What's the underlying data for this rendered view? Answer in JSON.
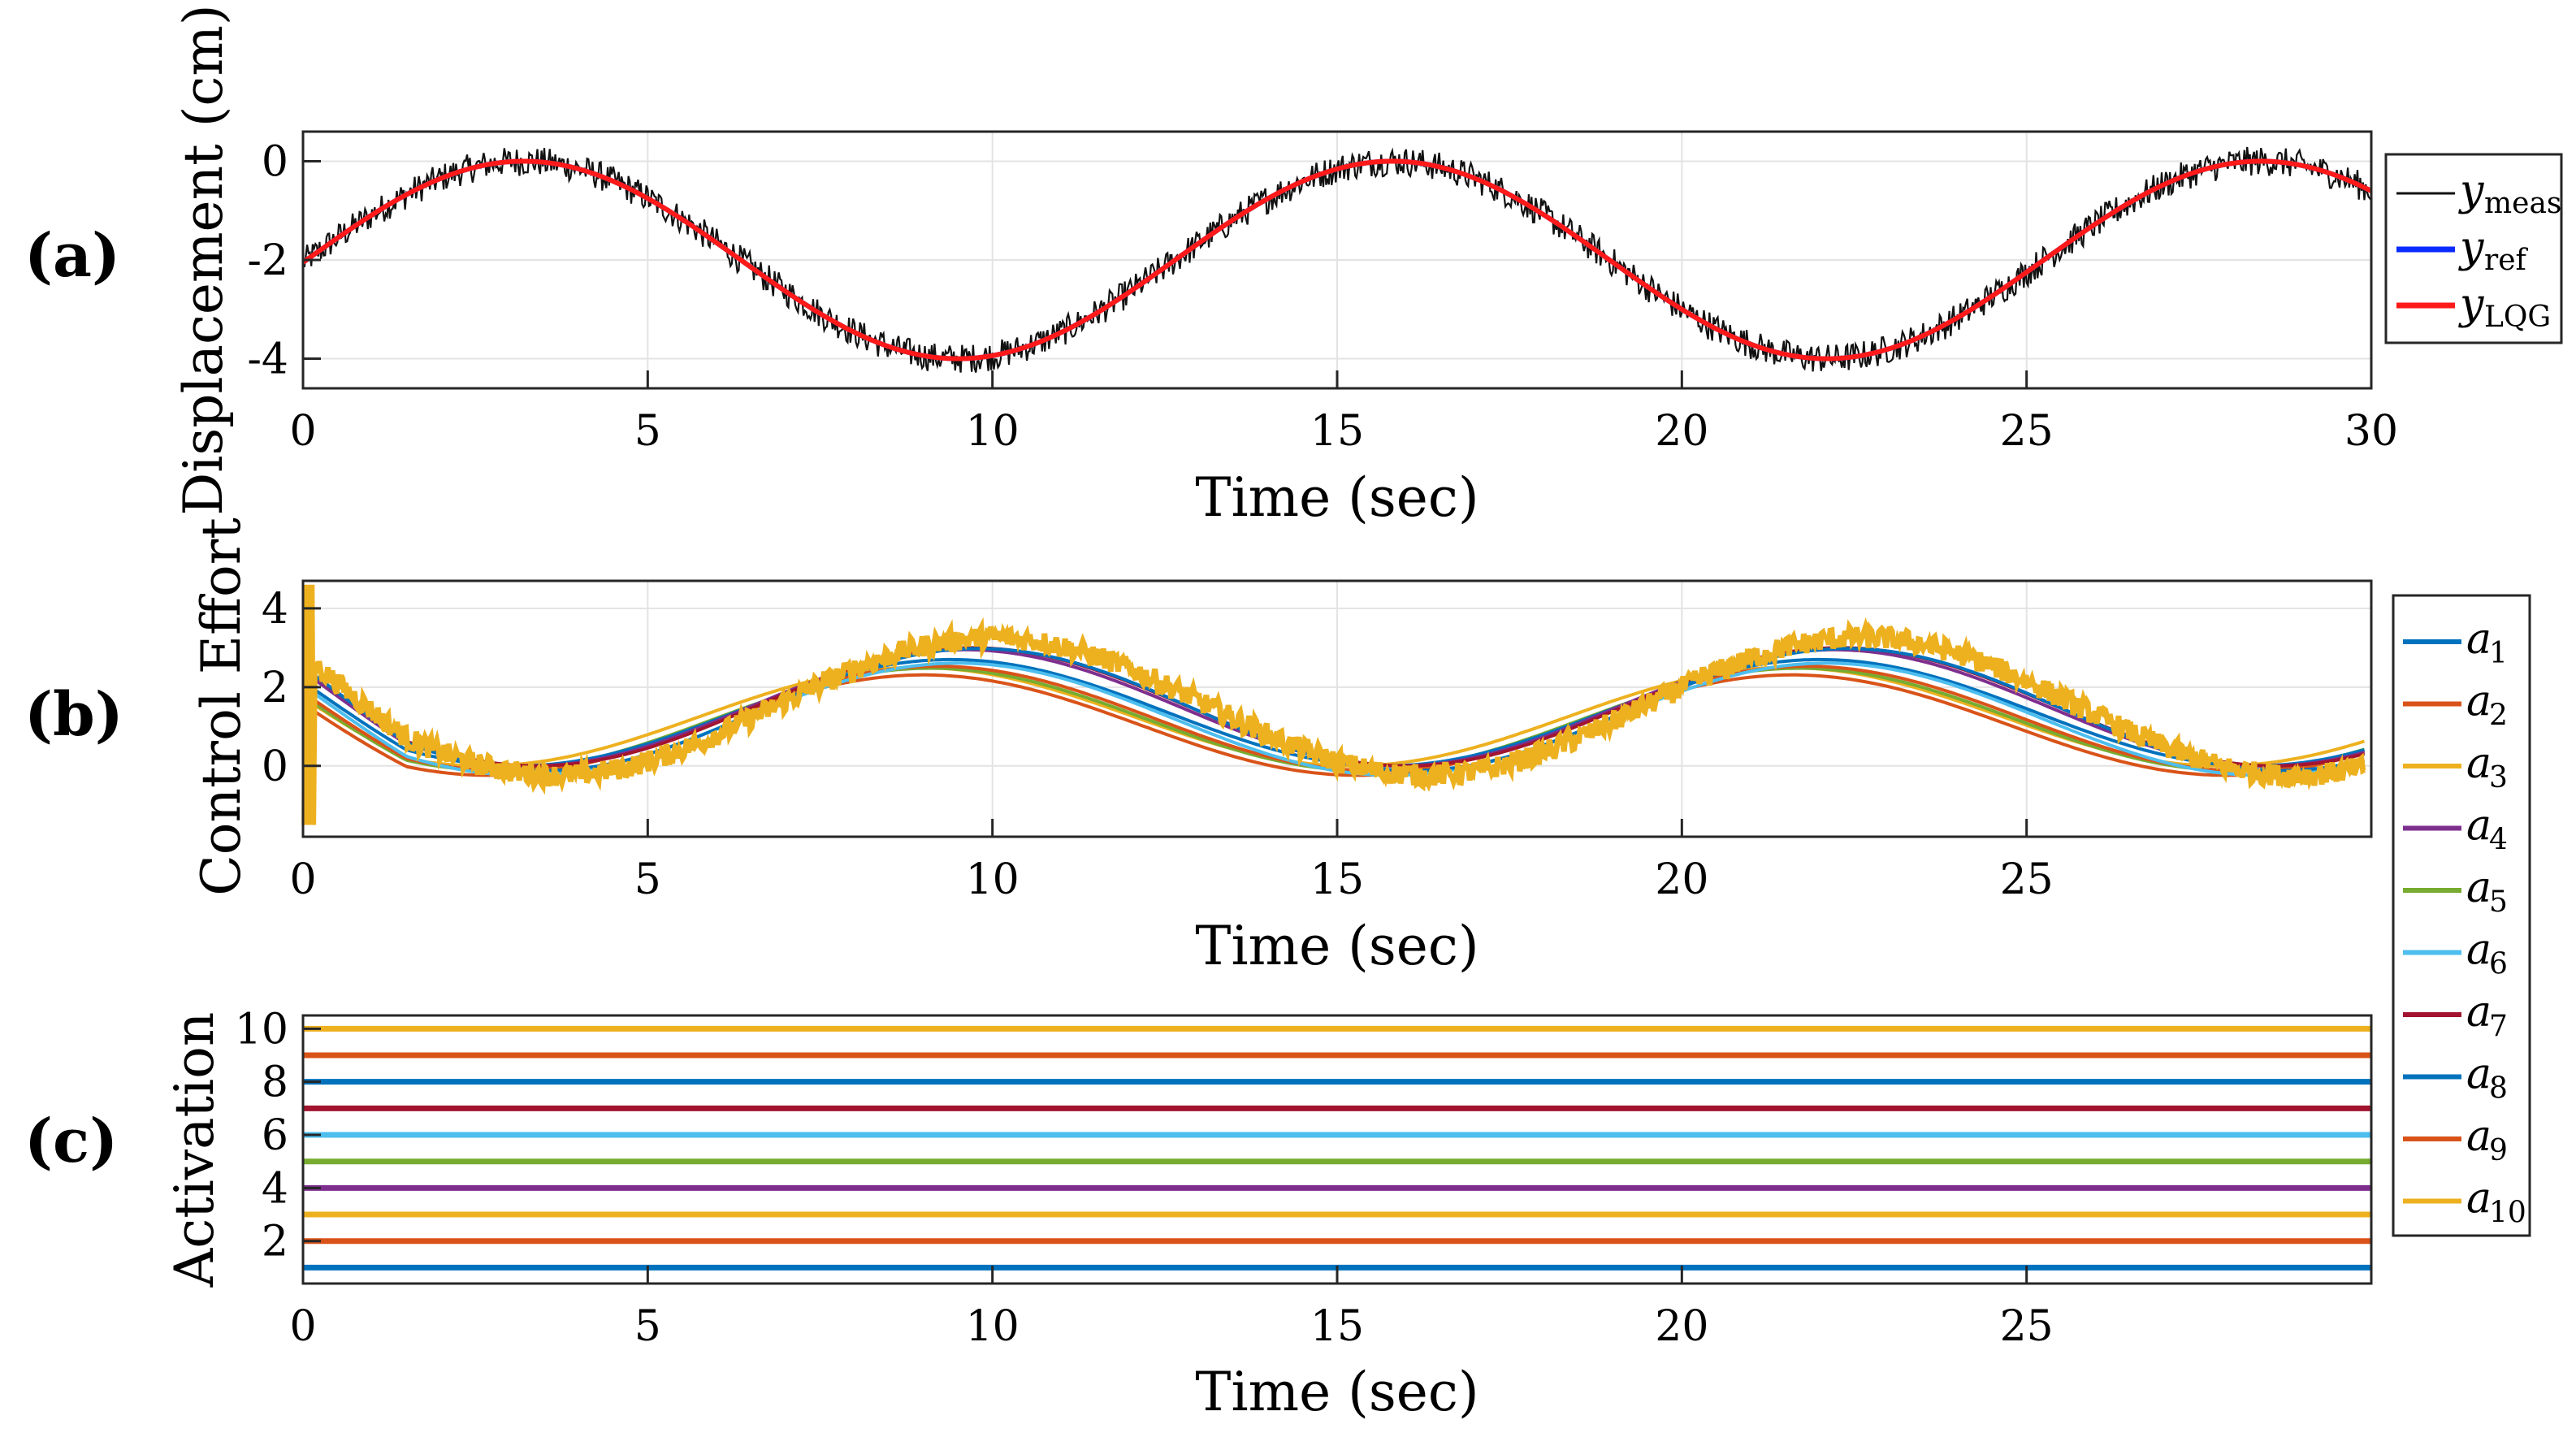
{
  "colors": {
    "meas": "#111111",
    "ref": "#0a2bff",
    "lqg": "#ff1a1a",
    "series": [
      "#0072BD",
      "#D95319",
      "#EDB120",
      "#7E2F8E",
      "#77AC30",
      "#4DBEEE",
      "#A2142F",
      "#0072BD",
      "#D95319",
      "#EDB120"
    ]
  },
  "panel_labels": [
    "(a)",
    "(b)",
    "(c)"
  ],
  "chart_data": [
    {
      "id": "a",
      "type": "line",
      "xlabel": "Time (sec)",
      "ylabel": "Displacement (cm)",
      "xlim": [
        0,
        30
      ],
      "ylim": [
        -4.6,
        0.6
      ],
      "xticks": [
        0,
        5,
        10,
        15,
        20,
        25,
        30
      ],
      "yticks": [
        -4,
        -2,
        0
      ],
      "ytick_labels": [
        "-4",
        "-2",
        "0"
      ],
      "grid": true,
      "legend_position": "outside-right",
      "reference": {
        "form": "A*cos(2*pi*(t - t0)/period) + offset",
        "amplitude": 2,
        "offset": -2,
        "period": 12.6,
        "t0": 3.2
      },
      "noise_amplitude_cm": 0.3,
      "series": [
        {
          "name": "y_meas",
          "legend": "y",
          "sub": "meas",
          "note": "noisy measurement"
        },
        {
          "name": "y_ref",
          "legend": "y",
          "sub": "ref"
        },
        {
          "name": "y_LQG",
          "legend": "y",
          "sub": "LQG"
        }
      ]
    },
    {
      "id": "b",
      "type": "line",
      "xlabel": "Time (sec)",
      "ylabel": "Control Effort",
      "xlim": [
        0,
        30
      ],
      "ylim": [
        -1.8,
        4.7
      ],
      "xticks": [
        0,
        5,
        10,
        15,
        20,
        25
      ],
      "yticks": [
        0,
        2,
        4
      ],
      "ytick_labels": [
        "0",
        "2",
        "4"
      ],
      "grid": true,
      "legend_position": "outside-right",
      "period": 12.6,
      "series": [
        {
          "name": "a",
          "sub": "1",
          "peak_t": 9.4,
          "amp": 2.7
        },
        {
          "name": "a",
          "sub": "2",
          "peak_t": 9.2,
          "amp": 2.65
        },
        {
          "name": "a",
          "sub": "3",
          "peak_t": 10.0,
          "amp": 3.5,
          "note": "noisy, thick"
        },
        {
          "name": "a",
          "sub": "4",
          "peak_t": 9.6,
          "amp": 2.95
        },
        {
          "name": "a",
          "sub": "5",
          "peak_t": 9.1,
          "amp": 2.6
        },
        {
          "name": "a",
          "sub": "6",
          "peak_t": 9.5,
          "amp": 2.85
        },
        {
          "name": "a",
          "sub": "7",
          "peak_t": 9.7,
          "amp": 3.0
        },
        {
          "name": "a",
          "sub": "8",
          "peak_t": 9.8,
          "amp": 3.1
        },
        {
          "name": "a",
          "sub": "9",
          "peak_t": 9.0,
          "amp": 2.55
        },
        {
          "name": "a",
          "sub": "10",
          "peak_t": 8.9,
          "amp": 2.5
        }
      ]
    },
    {
      "id": "c",
      "type": "line",
      "xlabel": "Time (sec)",
      "ylabel": "Activation",
      "xlim": [
        0,
        30
      ],
      "ylim": [
        0.4,
        10.5
      ],
      "xticks": [
        0,
        5,
        10,
        15,
        20,
        25
      ],
      "yticks": [
        2,
        4,
        6,
        8,
        10
      ],
      "ytick_labels": [
        "2",
        "4",
        "6",
        "8",
        "10"
      ],
      "grid": false,
      "series": [
        {
          "name": "a1",
          "value": 1
        },
        {
          "name": "a2",
          "value": 2
        },
        {
          "name": "a3",
          "value": 3
        },
        {
          "name": "a4",
          "value": 4
        },
        {
          "name": "a5",
          "value": 5
        },
        {
          "name": "a6",
          "value": 6
        },
        {
          "name": "a7",
          "value": 7
        },
        {
          "name": "a8",
          "value": 8
        },
        {
          "name": "a9",
          "value": 9
        },
        {
          "name": "a10",
          "value": 10
        }
      ]
    }
  ]
}
